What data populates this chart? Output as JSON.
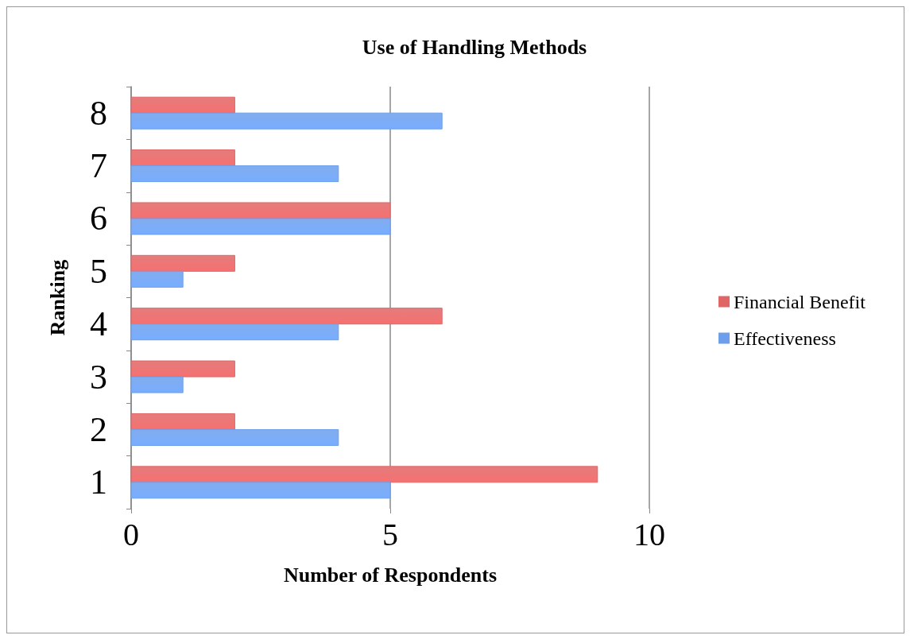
{
  "chart_data": {
    "type": "bar",
    "orientation": "horizontal",
    "title": "Use of Handling Methods",
    "xlabel": "Number of Respondents",
    "ylabel": "Ranking",
    "categories": [
      "8",
      "7",
      "6",
      "5",
      "4",
      "3",
      "2",
      "1"
    ],
    "series": [
      {
        "name": "Financial Benefit",
        "color": "#e06666",
        "values": [
          2,
          2,
          5,
          2,
          6,
          2,
          2,
          9
        ]
      },
      {
        "name": "Effectiveness",
        "color": "#6d9eeb",
        "values": [
          6,
          4,
          5,
          1,
          4,
          1,
          4,
          5
        ]
      }
    ],
    "xlim": [
      0,
      10
    ],
    "xticks": [
      0,
      5,
      10
    ],
    "grid": "x",
    "legend": "right"
  }
}
